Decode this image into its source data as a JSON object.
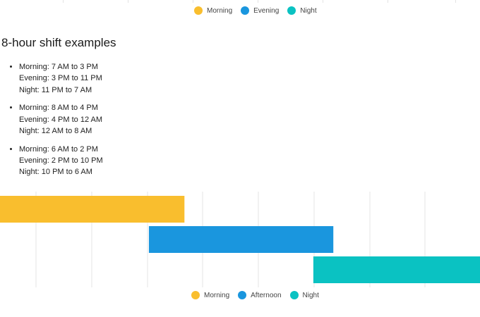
{
  "top_legend": {
    "items": [
      {
        "label": "Morning",
        "color": "#F9BE2E"
      },
      {
        "label": "Evening",
        "color": "#1A96DE"
      },
      {
        "label": "Night",
        "color": "#0AC2C2"
      }
    ]
  },
  "section": {
    "title": "8-hour shift examples"
  },
  "examples": [
    {
      "lines": [
        "Morning: 7 AM to 3 PM",
        "Evening: 3 PM to 11 PM",
        "Night: 11 PM to 7 AM"
      ]
    },
    {
      "lines": [
        "Morning: 8 AM to 4 PM",
        "Evening: 4 PM to 12 AM",
        "Night: 12 AM to 8 AM"
      ]
    },
    {
      "lines": [
        "Morning: 6 AM to 2 PM",
        "Evening: 2 PM to 10 PM",
        "Night: 10 PM to 6 AM"
      ]
    }
  ],
  "chart_data": {
    "type": "bar",
    "orientation": "horizontal-gantt",
    "grid": true,
    "xlabel": "",
    "ylabel": "",
    "series": [
      {
        "name": "Morning",
        "color": "#F9BE2E",
        "start": 0,
        "end": 8.3
      },
      {
        "name": "Afternoon",
        "color": "#1A96DE",
        "start": 6.7,
        "end": 15
      },
      {
        "name": "Night",
        "color": "#0AC2C2",
        "start": 14.1,
        "end": 21.6
      }
    ],
    "x_range": [
      0,
      21.6
    ],
    "legend": "bottom-center"
  },
  "bottom_legend": {
    "items": [
      {
        "label": "Morning",
        "color": "#F9BE2E"
      },
      {
        "label": "Afternoon",
        "color": "#1A96DE"
      },
      {
        "label": "Night",
        "color": "#0AC2C2"
      }
    ]
  }
}
